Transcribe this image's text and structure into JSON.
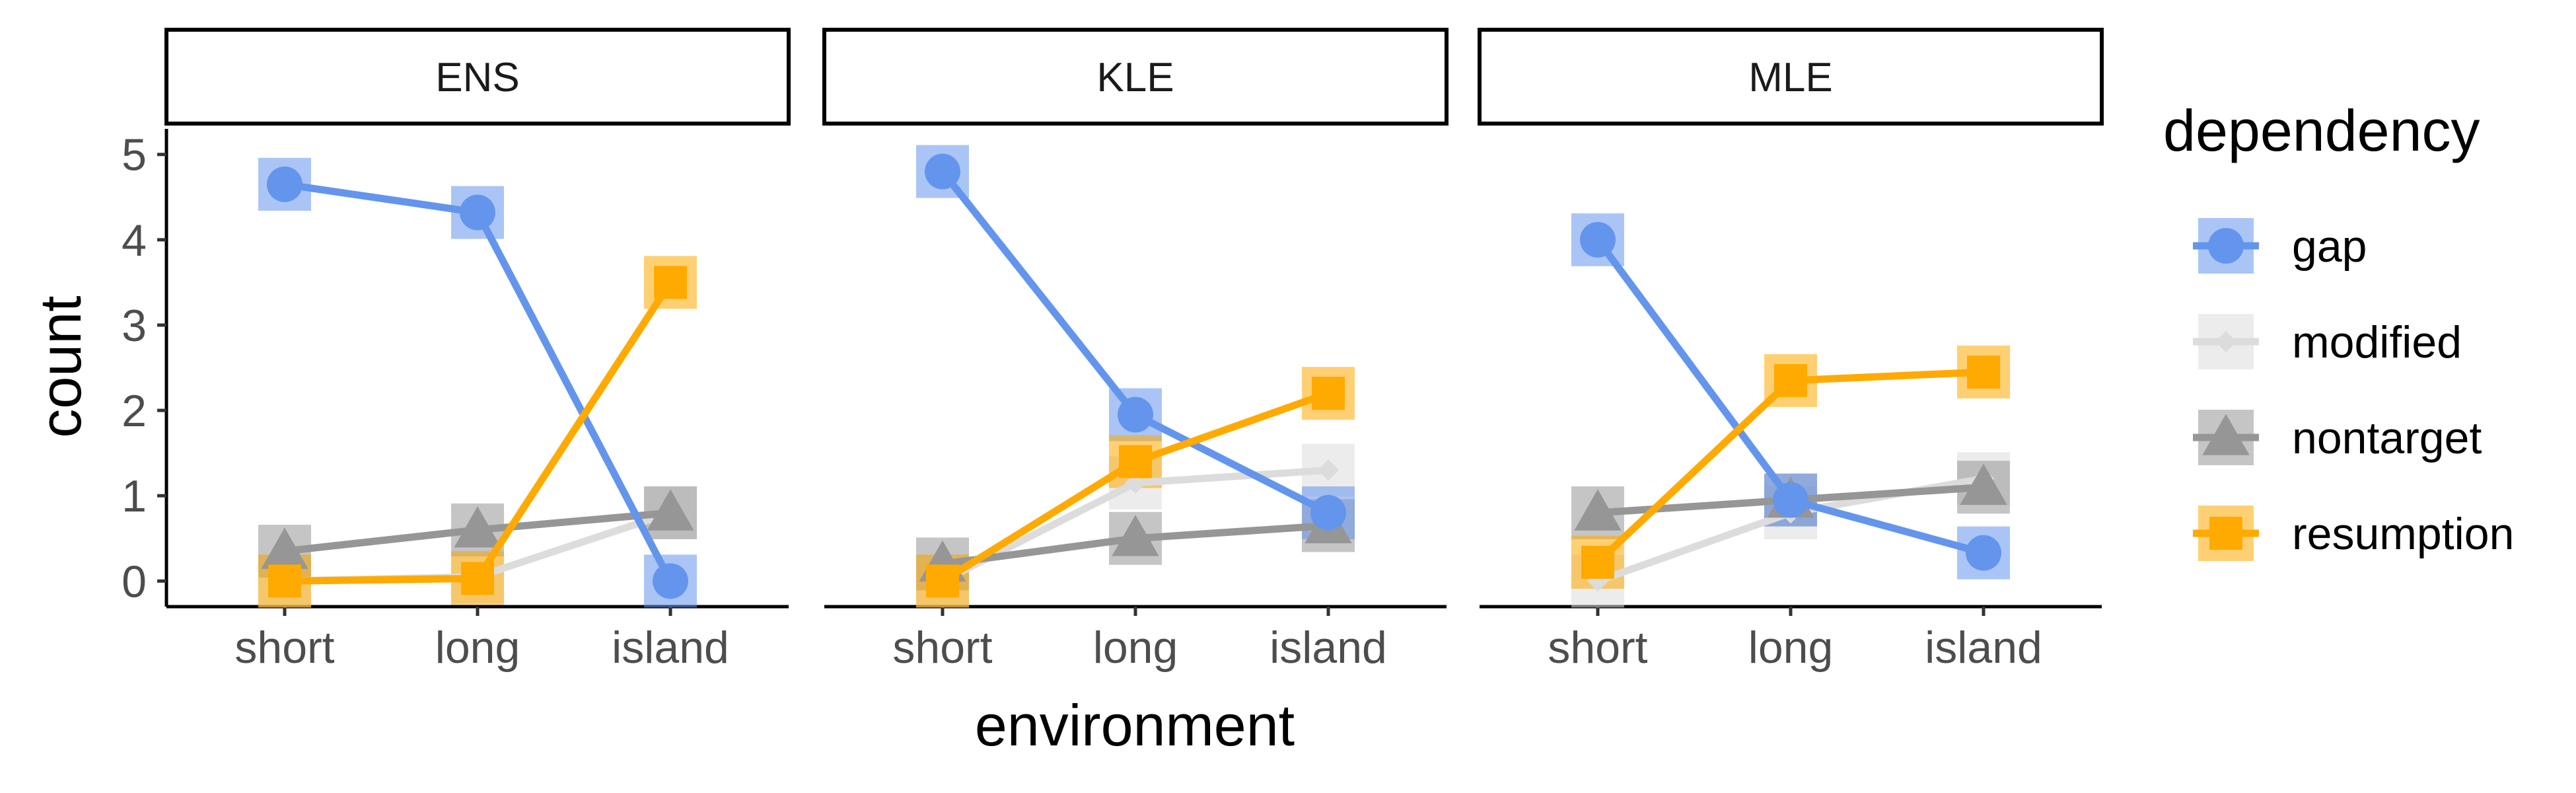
{
  "chart_data": {
    "type": "line",
    "xlabel": "environment",
    "ylabel": "count",
    "categories": [
      "short",
      "long",
      "island"
    ],
    "y_ticks": [
      "0",
      "1",
      "2",
      "3",
      "4",
      "5"
    ],
    "ylim": [
      -0.3,
      5.3
    ],
    "grid": false,
    "legend": {
      "title": "dependency",
      "placement": "right",
      "entries": [
        "gap",
        "modified",
        "nontarget",
        "resumption"
      ]
    },
    "series_style": {
      "gap": {
        "color": "#6495ED",
        "marker": "circle"
      },
      "modified": {
        "color": "#DCDCDC",
        "marker": "diamond"
      },
      "nontarget": {
        "color": "#969696",
        "marker": "triangle"
      },
      "resumption": {
        "color": "#FFAA00",
        "marker": "square"
      }
    },
    "facets": [
      {
        "panel": "ENS",
        "series": [
          {
            "name": "gap",
            "values": [
              4.65,
              4.32,
              0.0
            ]
          },
          {
            "name": "modified",
            "values": [
              0.0,
              0.05,
              0.8
            ]
          },
          {
            "name": "nontarget",
            "values": [
              0.35,
              0.6,
              0.8
            ]
          },
          {
            "name": "resumption",
            "values": [
              0.0,
              0.03,
              3.5
            ]
          }
        ]
      },
      {
        "panel": "KLE",
        "series": [
          {
            "name": "gap",
            "values": [
              4.8,
              1.95,
              0.8
            ]
          },
          {
            "name": "modified",
            "values": [
              0.0,
              1.15,
              1.3
            ]
          },
          {
            "name": "nontarget",
            "values": [
              0.2,
              0.5,
              0.65
            ]
          },
          {
            "name": "resumption",
            "values": [
              0.0,
              1.4,
              2.2
            ]
          }
        ]
      },
      {
        "panel": "MLE",
        "series": [
          {
            "name": "gap",
            "values": [
              4.0,
              0.95,
              0.33
            ]
          },
          {
            "name": "modified",
            "values": [
              0.0,
              0.8,
              1.2
            ]
          },
          {
            "name": "nontarget",
            "values": [
              0.8,
              0.95,
              1.1
            ]
          },
          {
            "name": "resumption",
            "values": [
              0.22,
              2.35,
              2.45
            ]
          }
        ]
      }
    ]
  }
}
